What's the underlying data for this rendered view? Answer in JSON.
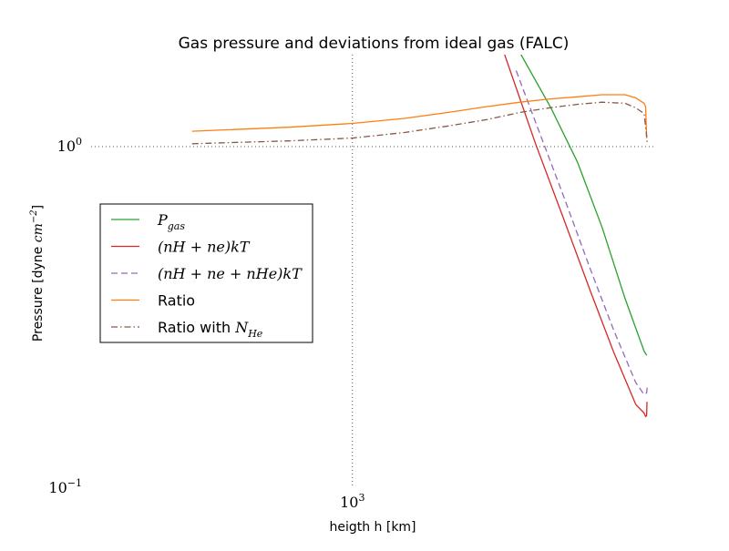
{
  "chart_data": {
    "type": "line",
    "title": "Gas pressure and deviations from ideal gas (FALC)",
    "xlabel": "heigth h [km]",
    "ylabel": "Pressure [dyne cm^-2]",
    "ylabel_prefix": "Pressure [dyne ",
    "ylabel_unit": "cm",
    "ylabel_exp": "−2",
    "ylabel_suffix": "]",
    "x_scale": "log",
    "y_scale": "log",
    "xlim": [
      400,
      2900
    ],
    "ylim": [
      0.1,
      1.86
    ],
    "grid": "dotted at major ticks",
    "x_ticks": [
      {
        "value": 1000,
        "base": "10",
        "exp": "3"
      }
    ],
    "y_ticks": [
      {
        "value": 0.1,
        "base": "10",
        "exp": "−1"
      },
      {
        "value": 1,
        "base": "10",
        "exp": "0"
      }
    ],
    "legend_position": "left",
    "series": [
      {
        "name": "P_gas",
        "legend_base": "P",
        "legend_sub": "gas",
        "color": "#2ca02c",
        "style": "solid",
        "x": [
          1806,
          2005,
          2202,
          2400,
          2600,
          2780,
          2806
        ],
        "y": [
          1.86,
          1.3,
          0.9,
          0.58,
          0.36,
          0.252,
          0.245
        ]
      },
      {
        "name": "(n_H + n_e)kT",
        "legend_text": "(nH + ne)kT",
        "color": "#d62728",
        "style": "solid",
        "x": [
          1705,
          1900,
          2100,
          2300,
          2500,
          2700,
          2780,
          2795,
          2805,
          2809
        ],
        "y": [
          1.86,
          1.02,
          0.61,
          0.38,
          0.25,
          0.176,
          0.166,
          0.162,
          0.163,
          0.179
        ]
      },
      {
        "name": "(n_H + n_e + n_He)kT",
        "legend_text": "(nH + ne + nHe)kT",
        "color": "#9467bd",
        "style": "dashed",
        "x": [
          1775,
          1900,
          2100,
          2300,
          2500,
          2700,
          2780,
          2805,
          2812
        ],
        "y": [
          1.67,
          1.18,
          0.71,
          0.44,
          0.29,
          0.204,
          0.188,
          0.19,
          0.2
        ]
      },
      {
        "name": "Ratio",
        "color": "#ff7f0e",
        "style": "solid",
        "x": [
          570,
          800,
          1000,
          1200,
          1400,
          1600,
          1800,
          2000,
          2200,
          2400,
          2600,
          2700,
          2780,
          2795,
          2800,
          2805
        ],
        "y": [
          1.11,
          1.14,
          1.17,
          1.21,
          1.26,
          1.31,
          1.35,
          1.38,
          1.4,
          1.42,
          1.42,
          1.39,
          1.34,
          1.31,
          1.19,
          1.07
        ]
      },
      {
        "name": "Ratio with N_He",
        "legend_base": "Ratio with ",
        "legend_math": "N",
        "legend_sub": "He",
        "color": "#8c564b",
        "style": "dashdot",
        "x": [
          570,
          800,
          1000,
          1200,
          1400,
          1600,
          1800,
          2000,
          2200,
          2400,
          2600,
          2700,
          2780,
          2800,
          2810
        ],
        "y": [
          1.02,
          1.04,
          1.06,
          1.1,
          1.15,
          1.2,
          1.26,
          1.3,
          1.33,
          1.35,
          1.34,
          1.3,
          1.25,
          1.12,
          1.03
        ]
      }
    ]
  }
}
